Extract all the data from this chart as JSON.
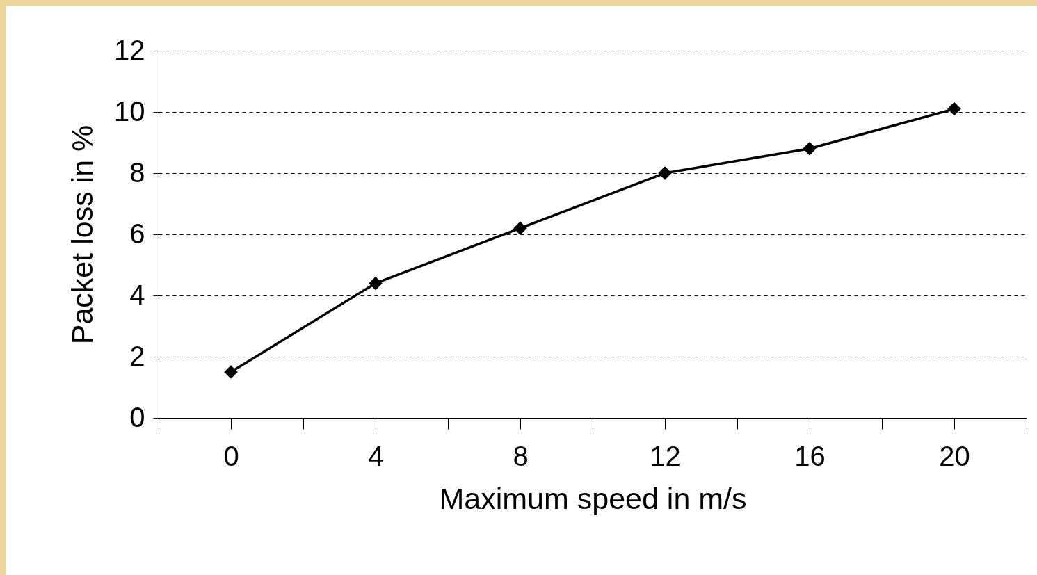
{
  "chart_data": {
    "type": "line",
    "xlabel": "Maximum speed in m/s",
    "ylabel": "Packet loss in %",
    "x": [
      0,
      4,
      8,
      12,
      16,
      20
    ],
    "series": [
      {
        "color": "#000000",
        "values": [
          1.5,
          4.4,
          6.2,
          8.0,
          8.8,
          10.1
        ]
      }
    ],
    "xlim": [
      -2,
      22
    ],
    "xticks": [
      {
        "value": -2,
        "label": null
      },
      0,
      {
        "value": 2,
        "label": null
      },
      4,
      {
        "value": 6,
        "label": null
      },
      8,
      {
        "value": 10,
        "label": null
      },
      12,
      {
        "value": 14,
        "label": null
      },
      16,
      {
        "value": 18,
        "label": null
      },
      20,
      {
        "value": 22,
        "label": null
      }
    ],
    "ylim": [
      0,
      12
    ],
    "yticks": [
      0,
      2,
      4,
      6,
      8,
      10,
      12
    ],
    "grid": "y",
    "marker": "diamond",
    "line_style": "solid"
  }
}
